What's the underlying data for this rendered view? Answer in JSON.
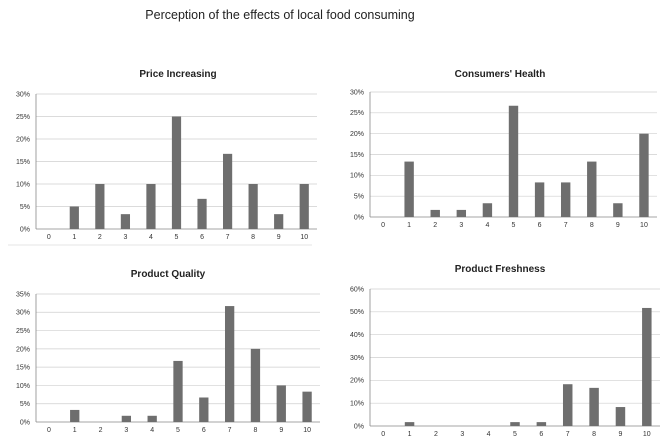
{
  "title": "Perception of the effects of local food consuming",
  "chart_data": [
    {
      "type": "bar",
      "title": "Price Increasing",
      "categories": [
        "0",
        "1",
        "2",
        "3",
        "4",
        "5",
        "6",
        "7",
        "8",
        "9",
        "10"
      ],
      "values": [
        0,
        5,
        10,
        3.3,
        10,
        25,
        6.7,
        16.7,
        10,
        3.3,
        10
      ],
      "yticks": [
        "0%",
        "5%",
        "10%",
        "15%",
        "20%",
        "25%",
        "30%"
      ],
      "ylim": [
        0,
        30
      ],
      "grid": true,
      "xlabel": "",
      "ylabel": "",
      "bar_color": "#6e6e6e"
    },
    {
      "type": "bar",
      "title": "Consumers' Health",
      "categories": [
        "0",
        "1",
        "2",
        "3",
        "4",
        "5",
        "6",
        "7",
        "8",
        "9",
        "10"
      ],
      "values": [
        0,
        13.3,
        1.7,
        1.7,
        3.3,
        26.7,
        8.3,
        8.3,
        13.3,
        3.3,
        20
      ],
      "yticks": [
        "0%",
        "5%",
        "10%",
        "15%",
        "20%",
        "25%",
        "30%"
      ],
      "ylim": [
        0,
        30
      ],
      "grid": true,
      "xlabel": "",
      "ylabel": "",
      "bar_color": "#6e6e6e"
    },
    {
      "type": "bar",
      "title": "Product Quality",
      "categories": [
        "0",
        "1",
        "2",
        "3",
        "4",
        "5",
        "6",
        "7",
        "8",
        "9",
        "10"
      ],
      "values": [
        0,
        3.3,
        0,
        1.7,
        1.7,
        16.7,
        6.7,
        31.7,
        20,
        10,
        8.3
      ],
      "yticks": [
        "0%",
        "5%",
        "10%",
        "15%",
        "20%",
        "25%",
        "30%",
        "35%"
      ],
      "ylim": [
        0,
        35
      ],
      "grid": true,
      "xlabel": "",
      "ylabel": "",
      "bar_color": "#6e6e6e"
    },
    {
      "type": "bar",
      "title": "Product Freshness",
      "categories": [
        "0",
        "1",
        "2",
        "3",
        "4",
        "5",
        "6",
        "7",
        "8",
        "9",
        "10"
      ],
      "values": [
        0,
        1.7,
        0,
        0,
        0,
        1.7,
        1.7,
        18.3,
        16.7,
        8.3,
        51.7
      ],
      "yticks": [
        "0%",
        "10%",
        "20%",
        "30%",
        "40%",
        "50%",
        "60%"
      ],
      "ylim": [
        0,
        60
      ],
      "grid": true,
      "xlabel": "",
      "ylabel": "",
      "bar_color": "#6e6e6e"
    }
  ]
}
